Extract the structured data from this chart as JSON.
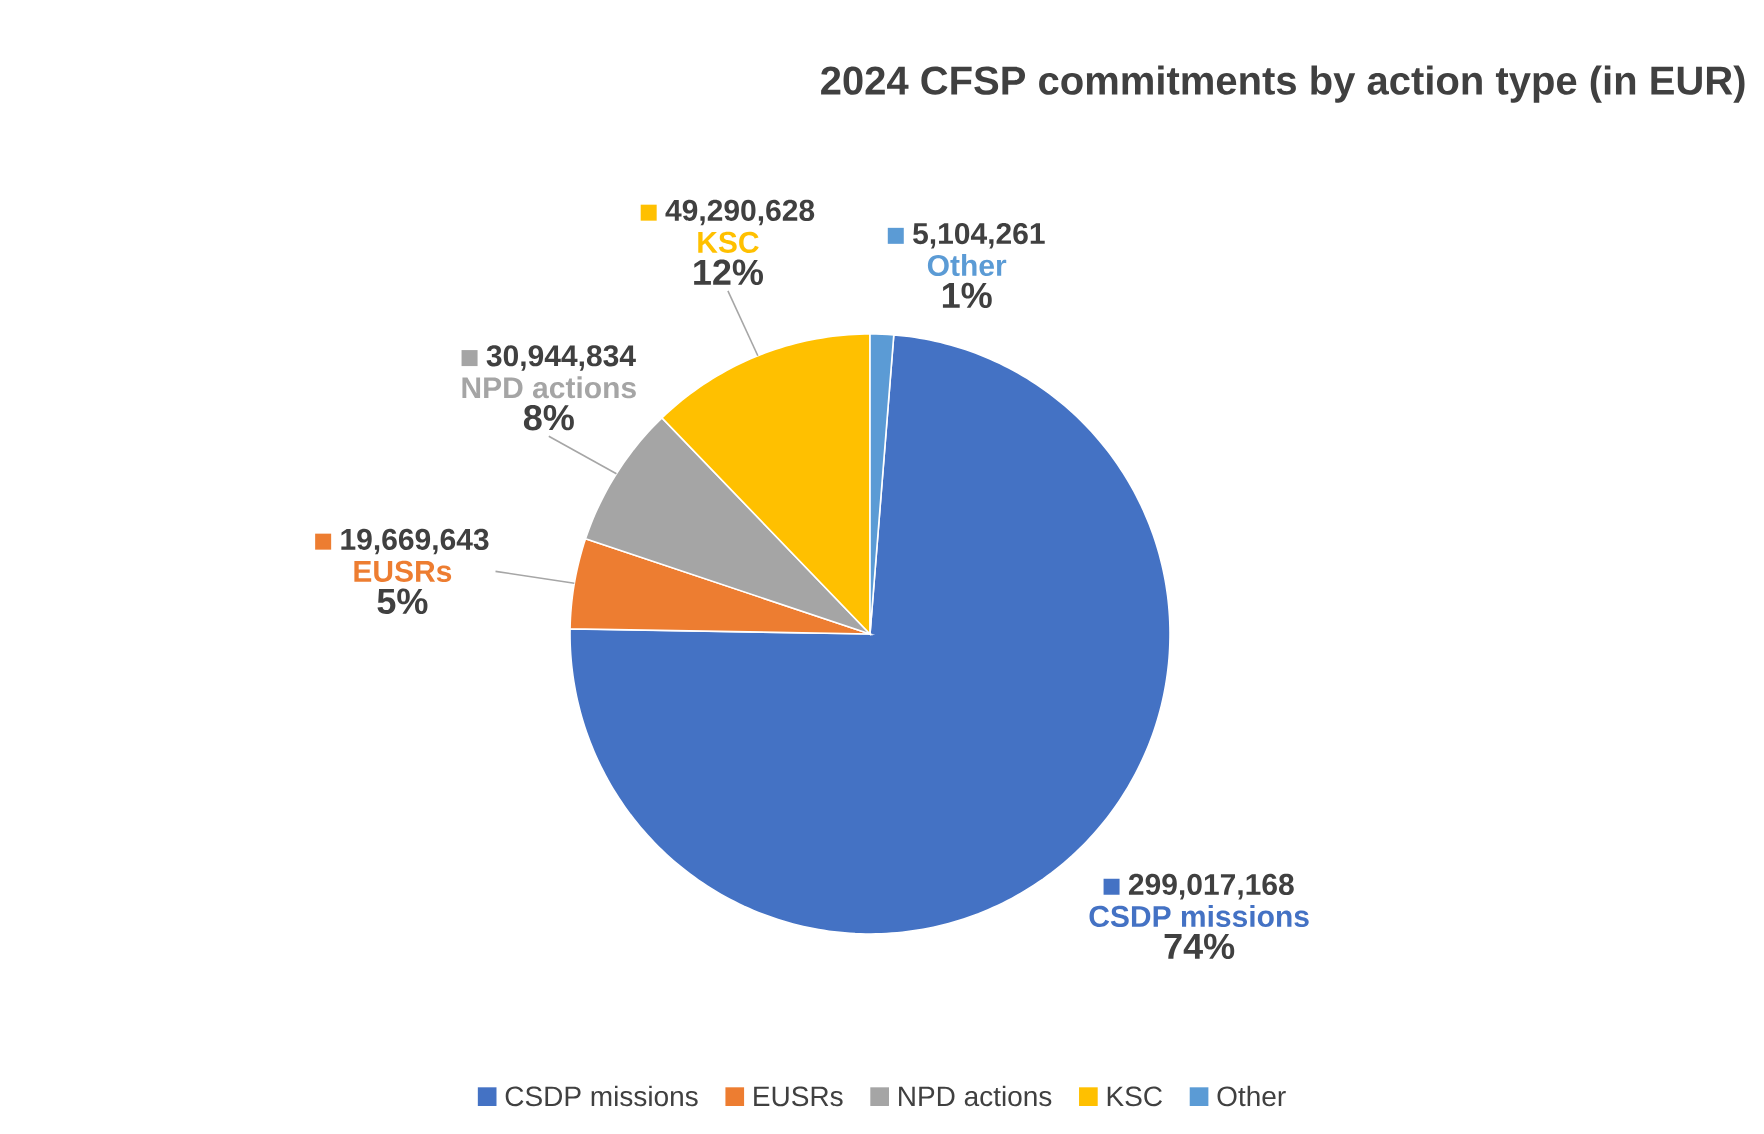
{
  "chart_data": {
    "type": "pie",
    "title": "2024 CFSP commitments by action type (in EUR)",
    "categories": [
      "CSDP missions",
      "EUSRs",
      "NPD actions",
      "KSC",
      "Other"
    ],
    "values": [
      299017168,
      19669643,
      30944834,
      49290628,
      5104261
    ],
    "value_labels": [
      "299,017,168",
      "19,669,643",
      "30,944,834",
      "49,290,628",
      "5,104,261"
    ],
    "annotations": [
      "74%",
      "5%",
      "8%",
      "12%",
      "1%"
    ],
    "colors": [
      "#4472c4",
      "#ed7d31",
      "#a5a5a5",
      "#ffc000",
      "#5b9bd5"
    ],
    "legend": "bottom"
  }
}
